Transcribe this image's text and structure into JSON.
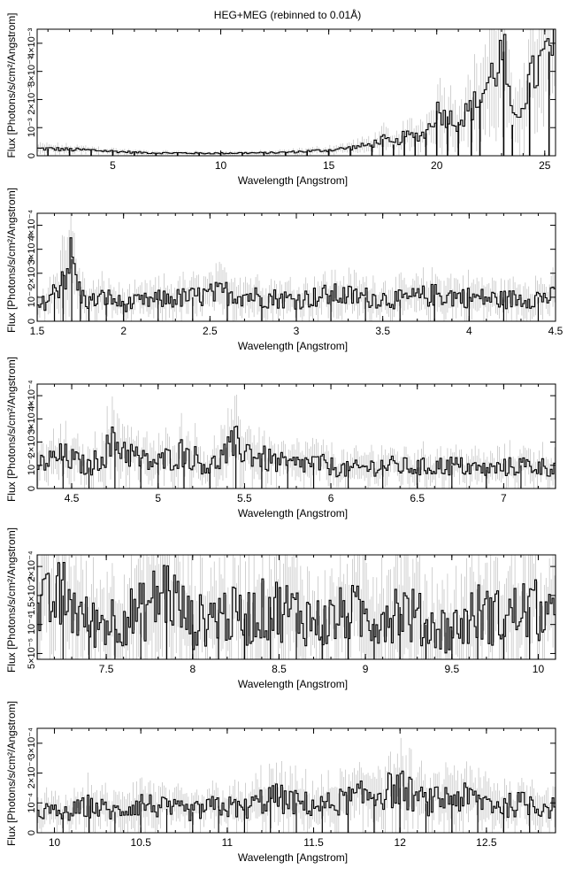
{
  "title": "HEG+MEG (rebinned to 0.01Å)",
  "colors": {
    "axis": "#000000",
    "data": "#000000",
    "error": "#bdbdbd"
  },
  "chart_data": [
    {
      "type": "line",
      "title": "HEG+MEG (rebinned to 0.01Å)",
      "xlabel": "Wavelength [Angstrom]",
      "ylabel": "Flux [Photons/s/cm²/Angstrom]",
      "xlim": [
        1.5,
        25.5
      ],
      "ylim": [
        0,
        0.0045
      ],
      "xticks": [
        5,
        10,
        15,
        20,
        25
      ],
      "ytick_labels": [
        "0",
        "10⁻³",
        "2×10⁻³",
        "3×10⁻³",
        "4×10⁻³"
      ],
      "grid": false,
      "series": [
        {
          "x": [
            2,
            3,
            4,
            5,
            6,
            7,
            8,
            9,
            10,
            11,
            12,
            13,
            14,
            15,
            16,
            17,
            17.5,
            18,
            18.5,
            19,
            19.5,
            20,
            20.5,
            21,
            21.6,
            22,
            23.1,
            23.5,
            24.3,
            25.2
          ],
          "y": [
            0.00025,
            0.00022,
            0.0002,
            0.00016,
            0.00012,
            0.0001,
            0.0001,
            9e-05,
            9e-05,
            0.0001,
            0.0001,
            0.00012,
            0.00016,
            0.0002,
            0.00028,
            0.0004,
            0.0006,
            0.0004,
            0.0007,
            0.0007,
            0.0008,
            0.0016,
            0.0014,
            0.0012,
            0.0017,
            0.002,
            0.0037,
            0.0011,
            0.0026,
            0.0037
          ]
        }
      ]
    },
    {
      "type": "line",
      "xlabel": "Wavelength [Angstrom]",
      "ylabel": "Flux [Photons/s/cm²/Angstrom]",
      "xlim": [
        1.5,
        4.5
      ],
      "ylim": [
        0,
        0.00045
      ],
      "xticks": [
        1.5,
        2,
        2.5,
        3,
        3.5,
        4,
        4.5
      ],
      "ytick_labels": [
        "0",
        "10⁻⁴",
        "2×10⁻⁴",
        "3×10⁻⁴",
        "4×10⁻⁴"
      ],
      "grid": false,
      "series": [
        {
          "x": [
            1.5,
            1.6,
            1.65,
            1.7,
            1.75,
            1.8,
            1.9,
            2.0,
            2.2,
            2.4,
            2.6,
            2.8,
            3.0,
            3.2,
            3.4,
            3.6,
            3.8,
            4.0,
            4.2,
            4.4
          ],
          "y": [
            5e-05,
            0.00012,
            0.0002,
            0.00026,
            0.00011,
            8e-05,
            0.0001,
            7e-05,
            9e-05,
            0.0001,
            0.00012,
            0.0001,
            9e-05,
            0.00011,
            0.0001,
            9e-05,
            0.00011,
            0.0001,
            9e-05,
            0.0001
          ]
        }
      ]
    },
    {
      "type": "line",
      "xlabel": "Wavelength [Angstrom]",
      "ylabel": "Flux [Photons/s/cm²/Angstrom]",
      "xlim": [
        4.3,
        7.3
      ],
      "ylim": [
        0,
        0.00045
      ],
      "xticks": [
        4.5,
        5,
        5.5,
        6,
        6.5,
        7
      ],
      "ytick_labels": [
        "0",
        "10⁻⁴",
        "2×10⁻⁴",
        "3×10⁻⁴",
        "4×10⁻⁴"
      ],
      "grid": false,
      "series": [
        {
          "x": [
            4.3,
            4.45,
            4.6,
            4.75,
            4.9,
            5.0,
            5.15,
            5.3,
            5.45,
            5.6,
            5.75,
            5.9,
            6.1,
            6.3,
            6.5,
            6.7,
            6.9,
            7.1,
            7.3
          ],
          "y": [
            0.0001,
            0.00014,
            9e-05,
            0.0002,
            0.00012,
            0.00011,
            0.00016,
            9e-05,
            0.00019,
            0.00013,
            0.0001,
            0.00011,
            8e-05,
            0.0001,
            9e-05,
            0.0001,
            8e-05,
            0.0001,
            9e-05
          ]
        }
      ]
    },
    {
      "type": "line",
      "xlabel": "Wavelength [Angstrom]",
      "ylabel": "Flux [Photons/s/cm²/Angstrom]",
      "xlim": [
        7.1,
        10.1
      ],
      "ylim": [
        4e-05,
        0.00022
      ],
      "xticks": [
        7.5,
        8,
        8.5,
        9,
        9.5,
        10
      ],
      "ytick_labels": [
        "5×10⁻⁵",
        "10⁻⁴",
        "1.5×10⁻⁴",
        "2×10⁻⁴"
      ],
      "grid": false,
      "series": [
        {
          "x": [
            7.1,
            7.25,
            7.4,
            7.55,
            7.7,
            7.85,
            8.0,
            8.15,
            8.3,
            8.45,
            8.6,
            8.75,
            8.9,
            9.05,
            9.2,
            9.35,
            9.5,
            9.65,
            9.8,
            9.95,
            10.1
          ],
          "y": [
            0.00012,
            0.00015,
            0.0001,
            0.00011,
            0.00012,
            0.00016,
            0.0001,
            0.00012,
            0.00011,
            0.00013,
            0.00012,
            0.0001,
            0.00012,
            0.00011,
            0.00013,
            0.0001,
            9e-05,
            0.00012,
            0.00011,
            0.00013,
            0.0001
          ]
        }
      ]
    },
    {
      "type": "line",
      "xlabel": "Wavelength [Angstrom]",
      "ylabel": "Flux [Photons/s/cm²/Angstrom]",
      "xlim": [
        9.9,
        12.9
      ],
      "ylim": [
        0,
        0.00035
      ],
      "xticks": [
        10,
        10.5,
        11,
        11.5,
        12,
        12.5
      ],
      "ytick_labels": [
        "0",
        "10⁻⁴",
        "2×10⁻⁴",
        "3×10⁻⁴"
      ],
      "grid": false,
      "series": [
        {
          "x": [
            9.9,
            10.05,
            10.2,
            10.35,
            10.5,
            10.65,
            10.8,
            10.95,
            11.1,
            11.25,
            11.4,
            11.55,
            11.7,
            11.85,
            12.0,
            12.15,
            12.3,
            12.45,
            12.6,
            12.75,
            12.9
          ],
          "y": [
            8e-05,
            6e-05,
            9e-05,
            7e-05,
            0.0001,
            8e-05,
            7e-05,
            9e-05,
            8e-05,
            0.00012,
            0.0001,
            9e-05,
            0.00011,
            0.00013,
            0.00015,
            0.0001,
            0.00012,
            0.00011,
            9e-05,
            0.0001,
            8e-05
          ]
        }
      ]
    }
  ]
}
